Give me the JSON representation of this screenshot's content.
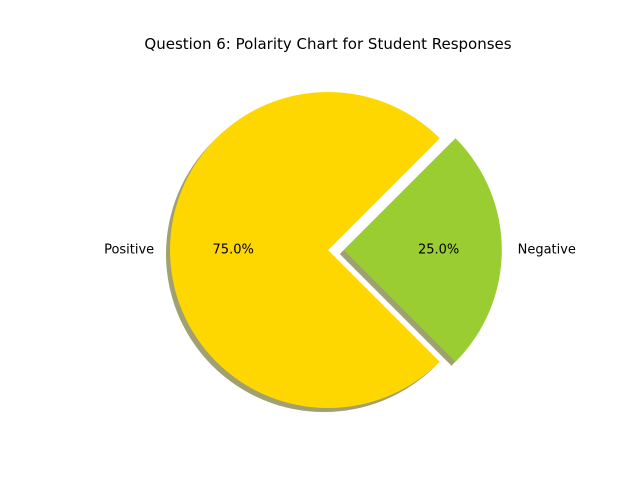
{
  "chart_data": {
    "type": "pie",
    "title": "Question 6: Polarity Chart for Student Responses",
    "slices": [
      {
        "label": "Positive",
        "value": 75.0,
        "pct_label": "75.0%",
        "color": "#FFD700",
        "exploded": false
      },
      {
        "label": "Negative",
        "value": 25.0,
        "pct_label": "25.0%",
        "color": "#9ACD32",
        "exploded": true
      }
    ],
    "shadow": true,
    "shadow_color": "#A0A070"
  }
}
